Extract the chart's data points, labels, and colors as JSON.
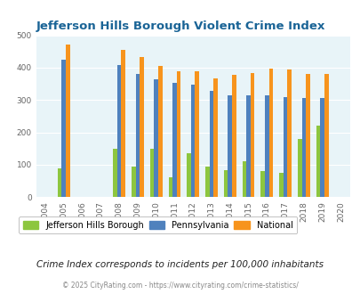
{
  "title": "Jefferson Hills Borough Violent Crime Index",
  "years": [
    2004,
    2005,
    2006,
    2007,
    2008,
    2009,
    2010,
    2011,
    2012,
    2013,
    2014,
    2015,
    2016,
    2017,
    2018,
    2019,
    2020
  ],
  "data_years": [
    2005,
    2008,
    2009,
    2010,
    2011,
    2012,
    2013,
    2014,
    2015,
    2016,
    2017,
    2018,
    2019
  ],
  "jefferson": [
    88,
    148,
    95,
    148,
    60,
    135,
    95,
    83,
    110,
    80,
    75,
    180,
    222
  ],
  "pennsylvania": [
    425,
    408,
    380,
    365,
    353,
    348,
    328,
    313,
    313,
    313,
    310,
    305,
    305
  ],
  "national": [
    470,
    455,
    432,
    405,
    388,
    388,
    366,
    378,
    383,
    398,
    394,
    380,
    380
  ],
  "jefferson_color": "#8dc63f",
  "pennsylvania_color": "#4f81bd",
  "national_color": "#f7941d",
  "background_color": "#ddeef6",
  "plot_bg_color": "#e8f4f8",
  "title_color": "#1a6496",
  "ylim": [
    0,
    500
  ],
  "yticks": [
    0,
    100,
    200,
    300,
    400,
    500
  ],
  "subtitle": "Crime Index corresponds to incidents per 100,000 inhabitants",
  "footer": "© 2025 CityRating.com - https://www.cityrating.com/crime-statistics/",
  "legend_labels": [
    "Jefferson Hills Borough",
    "Pennsylvania",
    "National"
  ],
  "bar_width": 0.22
}
